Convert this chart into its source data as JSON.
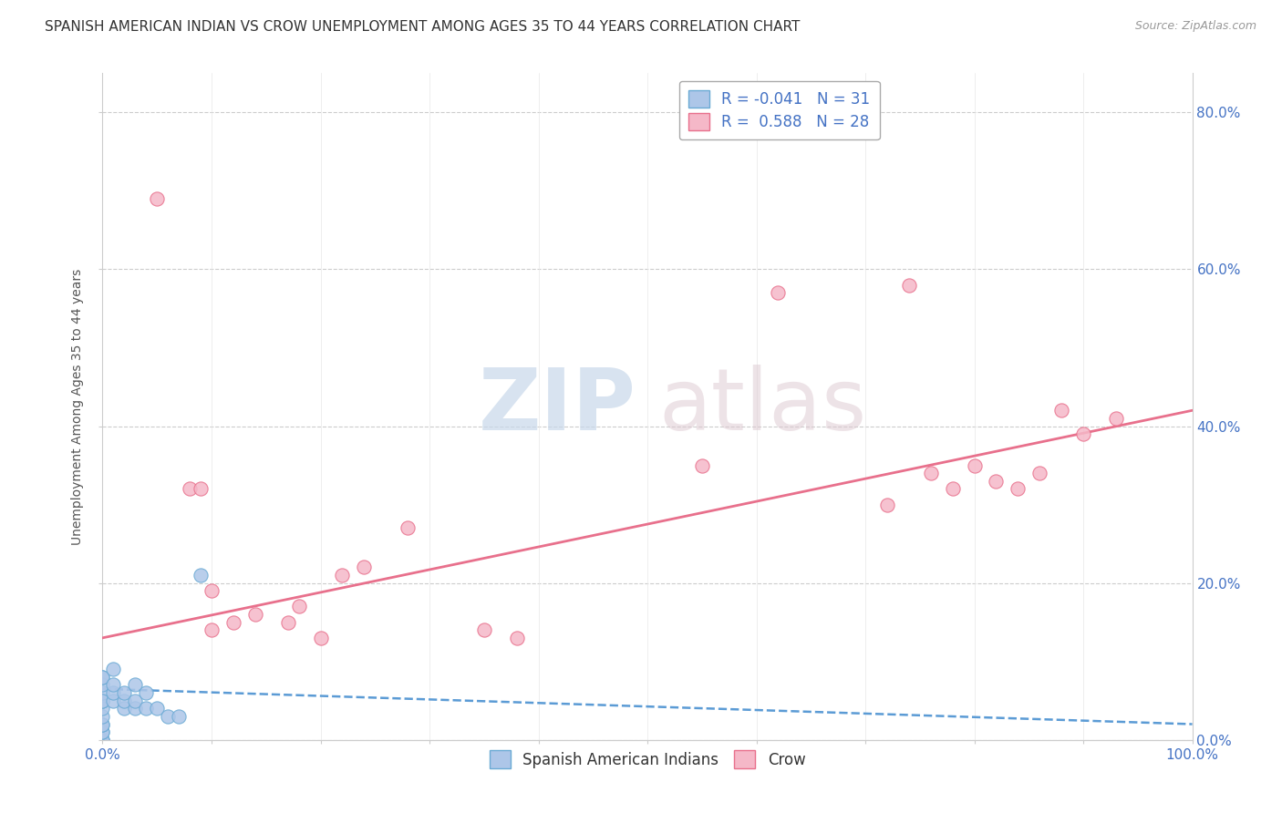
{
  "title": "SPANISH AMERICAN INDIAN VS CROW UNEMPLOYMENT AMONG AGES 35 TO 44 YEARS CORRELATION CHART",
  "source": "Source: ZipAtlas.com",
  "ylabel": "Unemployment Among Ages 35 to 44 years",
  "xlim": [
    0.0,
    1.0
  ],
  "ylim": [
    0.0,
    0.85
  ],
  "ytick_positions": [
    0.0,
    0.2,
    0.4,
    0.6,
    0.8
  ],
  "ytick_labels": [
    "0.0%",
    "20.0%",
    "40.0%",
    "60.0%",
    "80.0%"
  ],
  "xtick_labels_show": [
    "0.0%",
    "100.0%"
  ],
  "legend_R1": "-0.041",
  "legend_N1": "31",
  "legend_R2": "0.588",
  "legend_N2": "28",
  "color_blue_fill": "#adc6e8",
  "color_blue_edge": "#6aaad4",
  "color_pink_fill": "#f5b8c8",
  "color_pink_edge": "#e8708c",
  "color_blue_trend": "#5b9bd5",
  "color_pink_trend": "#e8708c",
  "blue_scatter_x": [
    0.0,
    0.0,
    0.0,
    0.0,
    0.0,
    0.0,
    0.0,
    0.0,
    0.0,
    0.0,
    0.0,
    0.0,
    0.0,
    0.0,
    0.0,
    0.01,
    0.01,
    0.01,
    0.01,
    0.02,
    0.02,
    0.02,
    0.03,
    0.03,
    0.03,
    0.04,
    0.04,
    0.05,
    0.06,
    0.07,
    0.09
  ],
  "blue_scatter_y": [
    0.0,
    0.0,
    0.0,
    0.01,
    0.01,
    0.02,
    0.02,
    0.03,
    0.04,
    0.05,
    0.06,
    0.07,
    0.08,
    0.08,
    0.05,
    0.05,
    0.06,
    0.07,
    0.09,
    0.04,
    0.05,
    0.06,
    0.04,
    0.05,
    0.07,
    0.04,
    0.06,
    0.04,
    0.03,
    0.03,
    0.21
  ],
  "pink_scatter_x": [
    0.05,
    0.08,
    0.09,
    0.1,
    0.1,
    0.12,
    0.14,
    0.17,
    0.18,
    0.2,
    0.22,
    0.24,
    0.28,
    0.35,
    0.38,
    0.55,
    0.62,
    0.72,
    0.74,
    0.76,
    0.78,
    0.8,
    0.82,
    0.84,
    0.86,
    0.88,
    0.9,
    0.93
  ],
  "pink_scatter_y": [
    0.69,
    0.32,
    0.32,
    0.19,
    0.14,
    0.15,
    0.16,
    0.15,
    0.17,
    0.13,
    0.21,
    0.22,
    0.27,
    0.14,
    0.13,
    0.35,
    0.57,
    0.3,
    0.58,
    0.34,
    0.32,
    0.35,
    0.33,
    0.32,
    0.34,
    0.42,
    0.39,
    0.41
  ],
  "blue_trend_x": [
    0.0,
    1.0
  ],
  "blue_trend_y": [
    0.065,
    0.02
  ],
  "pink_trend_x": [
    0.0,
    1.0
  ],
  "pink_trend_y": [
    0.13,
    0.42
  ],
  "background_color": "#ffffff",
  "grid_color": "#cccccc",
  "title_fontsize": 11,
  "axis_fontsize": 10,
  "tick_fontsize": 11,
  "scatter_size": 120
}
